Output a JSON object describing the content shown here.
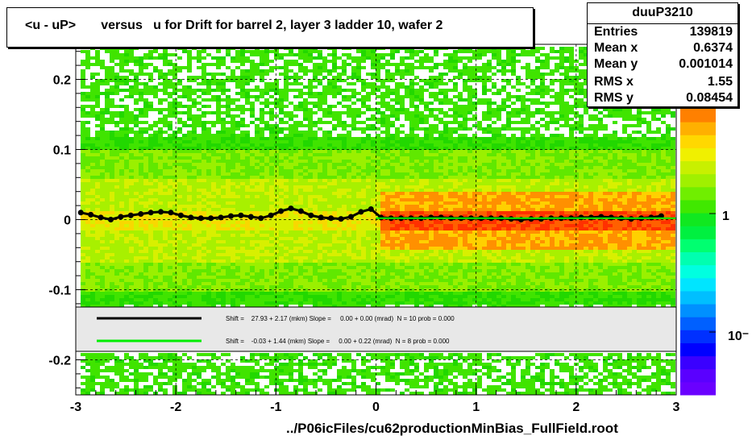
{
  "title": "<u - uP>       versus   u for Drift for barrel 2, layer 3 ladder 10, wafer 2",
  "stats": {
    "name": "duuP3210",
    "rows": [
      {
        "label": "Entries",
        "value": "139819"
      },
      {
        "label": "Mean x",
        "value": "0.6374"
      },
      {
        "label": "Mean y",
        "value": "0.001014"
      },
      {
        "label": "RMS x",
        "value": "1.55"
      },
      {
        "label": "RMS y",
        "value": "0.08454"
      }
    ]
  },
  "footer": "../P06icFiles/cu62productionMinBias_FullField.root",
  "fits": [
    {
      "color": "#000000",
      "text": "Shift =    27.93 + 2.17 (mkm) Slope =     0.00 + 0.00 (mrad)  N = 10 prob = 0.000"
    },
    {
      "color": "#00ee00",
      "text": "Shift =    -0.03 + 1.44 (mkm) Slope =     0.00 + 0.22 (mrad)  N = 8 prob = 0.000"
    }
  ],
  "colorbar": {
    "labels": [
      "1",
      "10⁻"
    ],
    "colors": [
      "#6a00ff",
      "#5a00ff",
      "#3a00ff",
      "#0000ff",
      "#0030ff",
      "#0060ff",
      "#0090ff",
      "#00bfff",
      "#00e5ff",
      "#00ffe0",
      "#00ffb0",
      "#00ff70",
      "#00f040",
      "#10e820",
      "#40e800",
      "#70ee00",
      "#a0f000",
      "#c8f000",
      "#f0f000",
      "#ffd800",
      "#ffb000",
      "#ff8000"
    ]
  },
  "chart_data": {
    "type": "heatmap",
    "title": "<u - uP>       versus   u for Drift for barrel 2, layer 3 ladder 10, wafer 2",
    "xlabel": "",
    "ylabel": "",
    "xlim": [
      -3,
      3
    ],
    "ylim": [
      -0.25,
      0.25
    ],
    "x_ticks": [
      "-3",
      "-2",
      "-1",
      "0",
      "1",
      "2",
      "3"
    ],
    "y_ticks": [
      "-0.2",
      "-0.1",
      "0",
      "0.1",
      "0.2"
    ],
    "grid": true,
    "series": [
      {
        "name": "profile",
        "color": "#000000",
        "x": [
          -2.95,
          -2.85,
          -2.75,
          -2.65,
          -2.55,
          -2.45,
          -2.35,
          -2.25,
          -2.15,
          -2.05,
          -1.95,
          -1.85,
          -1.75,
          -1.65,
          -1.55,
          -1.45,
          -1.35,
          -1.25,
          -1.15,
          -1.05,
          -0.95,
          -0.85,
          -0.75,
          -0.65,
          -0.55,
          -0.45,
          -0.35,
          -0.25,
          -0.15,
          -0.05,
          0.05,
          0.15,
          0.25,
          0.35,
          0.45,
          0.55,
          0.65,
          0.75,
          0.85,
          0.95,
          1.05,
          1.15,
          1.25,
          1.35,
          1.45,
          1.55,
          1.65,
          1.75,
          1.85,
          1.95,
          2.05,
          2.15,
          2.25,
          2.35,
          2.45,
          2.55,
          2.65,
          2.75,
          2.85
        ],
        "y": [
          0.01,
          0.007,
          0.003,
          0.0,
          0.004,
          0.006,
          0.008,
          0.01,
          0.011,
          0.01,
          0.006,
          0.003,
          0.002,
          0.002,
          0.003,
          0.005,
          0.006,
          0.004,
          0.002,
          0.006,
          0.012,
          0.016,
          0.012,
          0.006,
          0.003,
          0.002,
          0.001,
          0.004,
          0.011,
          0.015,
          0.003,
          0.002,
          0.002,
          0.002,
          0.002,
          0.003,
          0.003,
          0.002,
          0.002,
          0.002,
          0.002,
          0.002,
          0.002,
          0.001,
          0.0,
          0.001,
          0.001,
          0.002,
          0.002,
          0.002,
          0.003,
          0.003,
          0.004,
          0.003,
          0.002,
          0.001,
          0.002,
          0.003,
          0.005
        ]
      },
      {
        "name": "fit",
        "color": "#00ee00",
        "x": [
          0.0,
          3.0
        ],
        "y": [
          0.002,
          0.002
        ]
      }
    ]
  }
}
